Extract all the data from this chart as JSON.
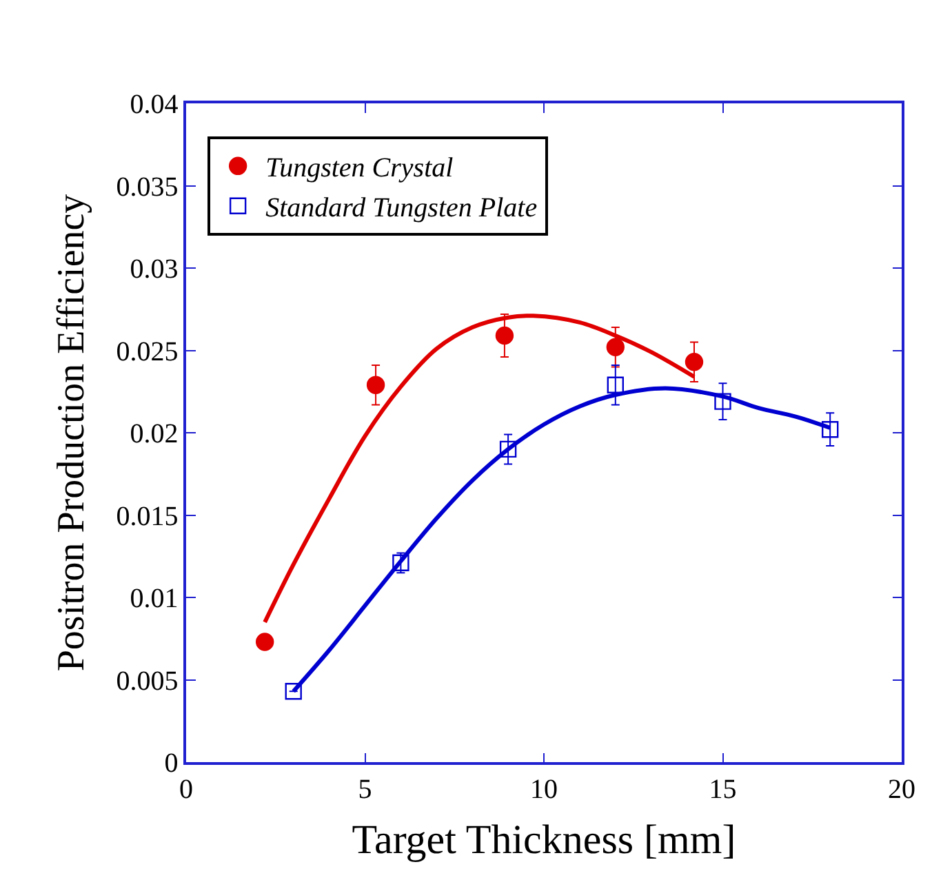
{
  "chart_data": {
    "type": "scatter",
    "xlabel": "Target Thickness [mm]",
    "ylabel": "Positron Production Efficiency",
    "xlim": [
      0,
      20
    ],
    "xticks": [
      0,
      5,
      10,
      15,
      20
    ],
    "ylim": [
      0,
      0.04
    ],
    "yticks": [
      0,
      0.005,
      0.01,
      0.015,
      0.02,
      0.025,
      0.03,
      0.035,
      0.04
    ],
    "legend": "top left",
    "series": [
      {
        "name": "Tungsten Crystal",
        "color": "#e00000",
        "marker": "circle",
        "x": [
          2.2,
          5.3,
          8.9,
          12.0,
          14.2
        ],
        "values": [
          0.0073,
          0.0229,
          0.0259,
          0.0252,
          0.0243
        ],
        "errors": [
          null,
          0.0012,
          0.0013,
          0.0012,
          0.0012
        ]
      },
      {
        "name": "Standard Tungsten Plate",
        "color": "#0000d0",
        "marker": "square",
        "x": [
          3,
          6,
          9,
          12,
          15,
          18
        ],
        "values": [
          0.0043,
          0.0121,
          0.019,
          0.0229,
          0.0219,
          0.0202
        ],
        "errors": [
          null,
          0.0006,
          0.0009,
          0.0012,
          0.0011,
          0.001
        ]
      },
      {
        "type": "line",
        "color": "#e00000",
        "marker": "none",
        "x": [
          2.2,
          3,
          4,
          5,
          6,
          7,
          8,
          9,
          9.7,
          11,
          12,
          13,
          14.2
        ],
        "values": [
          0.0085,
          0.012,
          0.016,
          0.0198,
          0.0228,
          0.0251,
          0.0264,
          0.027,
          0.0271,
          0.0267,
          0.0259,
          0.0249,
          0.0234
        ]
      },
      {
        "type": "line",
        "color": "#0000d0",
        "marker": "none",
        "x": [
          3,
          4,
          5,
          6,
          7,
          8,
          9,
          10,
          11,
          12,
          13.4,
          15,
          16,
          17,
          18
        ],
        "values": [
          0.0043,
          0.0068,
          0.0095,
          0.0122,
          0.0148,
          0.0171,
          0.019,
          0.0205,
          0.0216,
          0.0223,
          0.0227,
          0.0222,
          0.0215,
          0.021,
          0.0203
        ]
      }
    ]
  }
}
